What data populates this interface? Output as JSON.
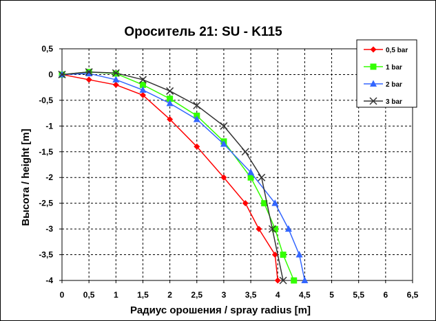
{
  "chart_data": {
    "type": "line",
    "title": "Ороситель   21: SU - K115",
    "xlabel": "Радиус орошения / spray radius [m]",
    "ylabel": "Высота / height [m]",
    "xlim": [
      0,
      6.5
    ],
    "ylim": [
      -4,
      0.5
    ],
    "xticks": [
      0,
      0.5,
      1,
      1.5,
      2,
      2.5,
      3,
      3.5,
      4,
      4.5,
      5,
      5.5,
      6,
      6.5
    ],
    "xtick_labels": [
      "0",
      "0,5",
      "1",
      "1,5",
      "2",
      "2,5",
      "3",
      "3,5",
      "4",
      "4,5",
      "5",
      "5,5",
      "6",
      "6,5"
    ],
    "yticks": [
      0.5,
      0,
      -0.5,
      -1,
      -1.5,
      -2,
      -2.5,
      -3,
      -3.5,
      -4
    ],
    "ytick_labels": [
      "0,5",
      "0",
      "-0,5",
      "-1",
      "-1,5",
      "-2",
      "-2,5",
      "-3",
      "-3,5",
      "-4"
    ],
    "grid": "major gridlines, dashed",
    "legend_position": "top-right",
    "series": [
      {
        "name": "0,5 bar",
        "color": "#ff0000",
        "marker": "diamond",
        "x": [
          0,
          0.5,
          1.0,
          1.5,
          2.0,
          2.5,
          3.0,
          3.4,
          3.65,
          3.95,
          4.0
        ],
        "y": [
          0,
          -0.1,
          -0.2,
          -0.4,
          -0.87,
          -1.4,
          -2.0,
          -2.5,
          -3.0,
          -3.5,
          -4.0
        ]
      },
      {
        "name": "1 bar",
        "color": "#33ff00",
        "marker": "square",
        "x": [
          0,
          0.5,
          1.0,
          1.5,
          2.0,
          2.5,
          3.0,
          3.5,
          3.75,
          3.95,
          4.1,
          4.3
        ],
        "y": [
          0,
          0.05,
          0.02,
          -0.2,
          -0.47,
          -0.8,
          -1.3,
          -2.0,
          -2.5,
          -3.0,
          -3.5,
          -4.0
        ]
      },
      {
        "name": "2 bar",
        "color": "#3366ff",
        "marker": "triangle",
        "x": [
          0,
          0.5,
          1.0,
          1.5,
          2.0,
          2.5,
          3.0,
          3.5,
          3.95,
          4.2,
          4.4,
          4.5
        ],
        "y": [
          0,
          0.02,
          -0.1,
          -0.3,
          -0.56,
          -0.87,
          -1.35,
          -1.9,
          -2.5,
          -3.0,
          -3.5,
          -4.0
        ]
      },
      {
        "name": "3 bar",
        "color": "#333333",
        "marker": "x",
        "x": [
          0,
          0.5,
          1.0,
          1.5,
          2.0,
          2.5,
          3.0,
          3.4,
          3.7,
          3.9,
          4.1
        ],
        "y": [
          0,
          0.05,
          0.03,
          -0.1,
          -0.32,
          -0.6,
          -1.0,
          -1.5,
          -2.0,
          -3.0,
          -4.0
        ]
      }
    ]
  }
}
